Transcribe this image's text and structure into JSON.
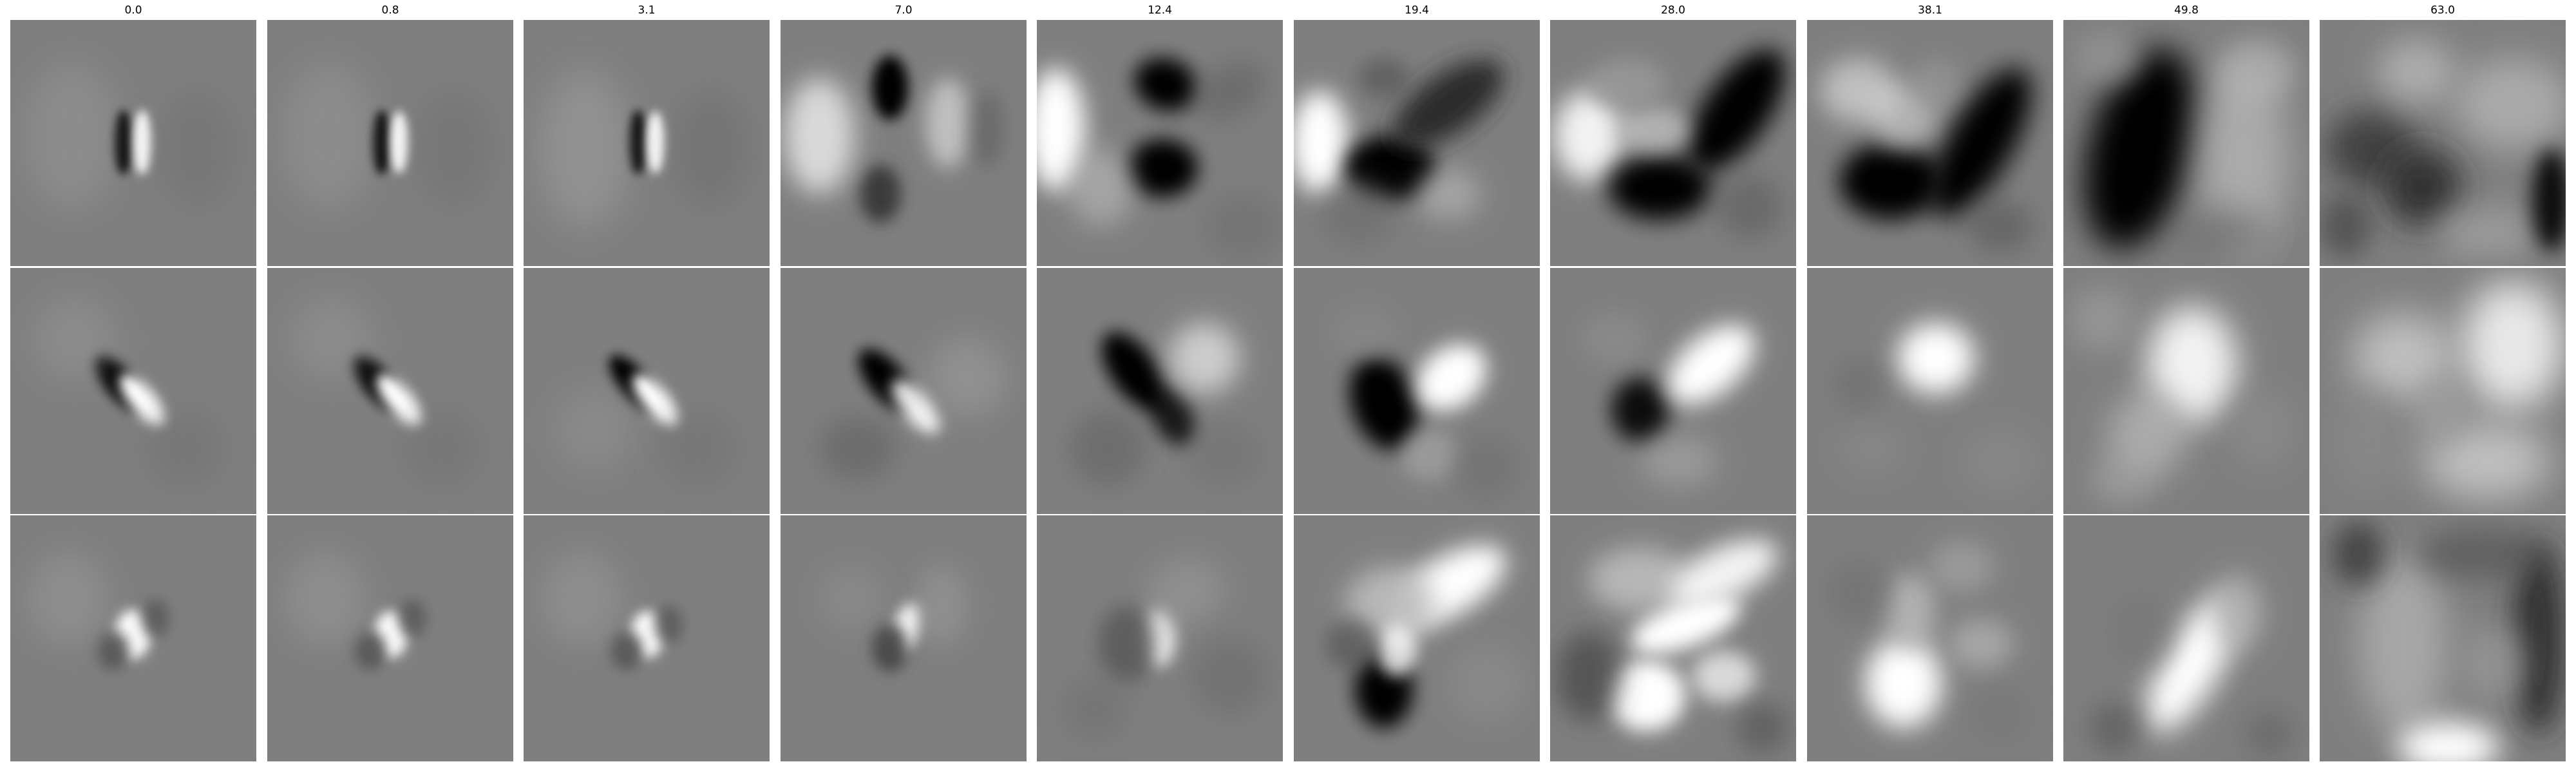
{
  "column_titles": [
    "0.0",
    "0.8",
    "3.1",
    "7.0",
    "12.4",
    "19.4",
    "28.0",
    "38.1",
    "49.8",
    "63.0"
  ],
  "rows": 3,
  "colormap": "grayscale",
  "background_gray": "#7f7f7f"
}
